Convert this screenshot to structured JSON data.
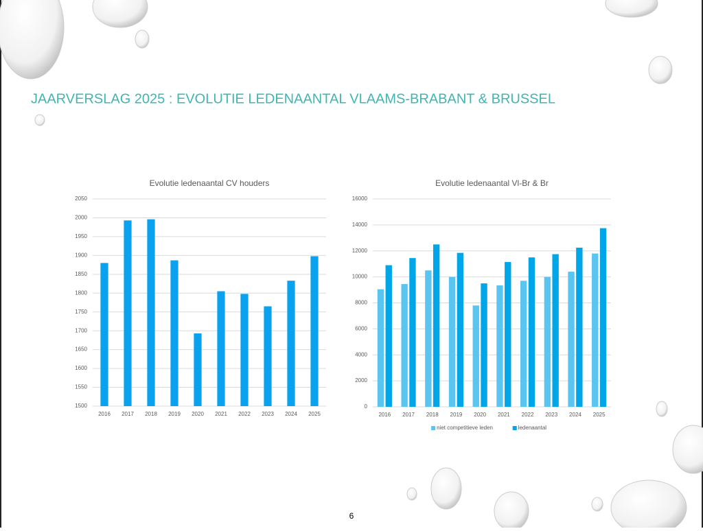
{
  "slide": {
    "title": "JAARVERSLAG 2025 : EVOLUTIE LEDENAANTAL VLAAMS-BRABANT & BRUSSEL",
    "page_number": "6"
  },
  "chart_data": [
    {
      "type": "bar",
      "title": "Evolutie ledenaantal CV houders",
      "categories": [
        "2016",
        "2017",
        "2018",
        "2019",
        "2020",
        "2021",
        "2022",
        "2023",
        "2024",
        "2025"
      ],
      "values": [
        1880,
        1993,
        1996,
        1887,
        1693,
        1805,
        1798,
        1765,
        1833,
        1898
      ],
      "color": "#0aa2ee",
      "ylim": [
        1500,
        2050
      ],
      "yticks": [
        1500,
        1550,
        1600,
        1650,
        1700,
        1750,
        1800,
        1850,
        1900,
        1950,
        2000,
        2050
      ],
      "grid": true
    },
    {
      "type": "bar",
      "title": "Evolutie ledenaantal Vl-Br & Br",
      "categories": [
        "2016",
        "2017",
        "2018",
        "2019",
        "2020",
        "2021",
        "2022",
        "2023",
        "2024",
        "2025"
      ],
      "series": [
        {
          "name": "niet competitieve leden",
          "color": "#5bc5f2",
          "values": [
            9050,
            9450,
            10500,
            10000,
            7800,
            9350,
            9700,
            10000,
            10400,
            11800
          ]
        },
        {
          "name": "ledenaantal",
          "color": "#00a6e8",
          "values": [
            10900,
            11450,
            12500,
            11850,
            9500,
            11150,
            11500,
            11750,
            12250,
            13750
          ]
        }
      ],
      "ylim": [
        0,
        16000
      ],
      "yticks": [
        0,
        2000,
        4000,
        6000,
        8000,
        10000,
        12000,
        14000,
        16000
      ],
      "grid": true,
      "legend": "bottom"
    }
  ]
}
